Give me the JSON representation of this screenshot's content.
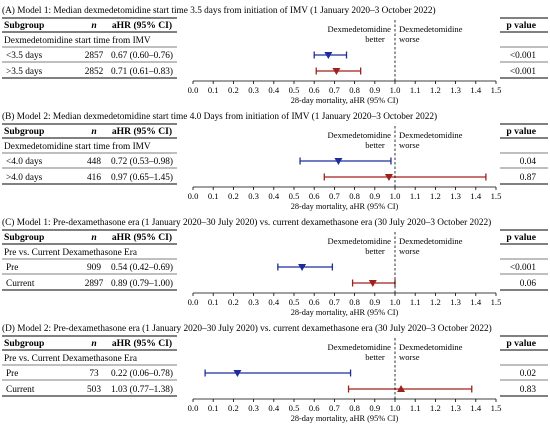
{
  "chart_data": [
    {
      "type": "forest",
      "title": "(A) Model 1: Median dexmedetomidine start time 3.5 days from initiation of IMV (1 January 2020–3 October 2022)",
      "columns": {
        "subgroup": "Subgroup",
        "n": "n",
        "ahr": "aHR (95% CI)",
        "p": "p value"
      },
      "group_label": "Dexmedetomidine start time from IMV",
      "rows": [
        {
          "label": "<3.5 days",
          "n": "2857",
          "ahr_text": "0.67 (0.60–0.76)",
          "p": "<0.001",
          "est": 0.67,
          "lo": 0.6,
          "hi": 0.76,
          "color": "#1f2d9c",
          "marker": "down"
        },
        {
          "label": ">3.5 days",
          "n": "2852",
          "ahr_text": "0.71 (0.61–0.83)",
          "p": "<0.001",
          "est": 0.71,
          "lo": 0.61,
          "hi": 0.83,
          "color": "#a0201c",
          "marker": "down"
        }
      ],
      "better_label": [
        "Dexmedetomidine",
        "better"
      ],
      "worse_label": [
        "Dexmedetomidine",
        "worse"
      ],
      "xlabel": "28-day mortality, aHR (95% CI)",
      "xlim": [
        0.0,
        1.5
      ],
      "xticks": [
        "0.0",
        "0.1",
        "0.2",
        "0.3",
        "0.4",
        "0.5",
        "0.6",
        "0.7",
        "0.8",
        "0.9",
        "1.0",
        "1.1",
        "1.2",
        "1.3",
        "1.4",
        "1.5"
      ],
      "reference_line": 1.0
    },
    {
      "type": "forest",
      "title": "(B) Model 2: Median dexmedetomidine start time 4.0 Days from initiation of IMV (1 January 2020–3 October 2022)",
      "columns": {
        "subgroup": "Subgroup",
        "n": "n",
        "ahr": "aHR (95% CI)",
        "p": "p value"
      },
      "group_label": "Dexmedetomidine start time from IMV",
      "rows": [
        {
          "label": "<4.0 days",
          "n": "448",
          "ahr_text": "0.72 (0.53–0.98)",
          "p": "0.04",
          "est": 0.72,
          "lo": 0.53,
          "hi": 0.98,
          "color": "#1f2d9c",
          "marker": "down"
        },
        {
          "label": ">4.0 days",
          "n": "416",
          "ahr_text": "0.97 (0.65–1.45)",
          "p": "0.87",
          "est": 0.97,
          "lo": 0.65,
          "hi": 1.45,
          "color": "#a0201c",
          "marker": "down"
        }
      ],
      "better_label": [
        "Dexmedetomidine",
        "better"
      ],
      "worse_label": [
        "Dexmedetomidine",
        "worse"
      ],
      "xlabel": "28-day mortality, aHR (95% CI)",
      "xlim": [
        0.0,
        1.5
      ],
      "xticks": [
        "0.0",
        "0.1",
        "0.2",
        "0.3",
        "0.4",
        "0.5",
        "0.6",
        "0.7",
        "0.8",
        "0.9",
        "1.0",
        "1.1",
        "1.2",
        "1.3",
        "1.4",
        "1.5"
      ],
      "reference_line": 1.0
    },
    {
      "type": "forest",
      "title": "(C) Model 1: Pre-dexamethasone era (1 January 2020–30 July 2020) vs. current dexamethasone era (30 July 2020–3 October 2022)",
      "columns": {
        "subgroup": "Subgroup",
        "n": "n",
        "ahr": "aHR (95% CI)",
        "p": "p value"
      },
      "group_label": "Pre vs. Current Dexamethasone Era",
      "rows": [
        {
          "label": "Pre",
          "n": "909",
          "ahr_text": "0.54 (0.42–0.69)",
          "p": "<0.001",
          "est": 0.54,
          "lo": 0.42,
          "hi": 0.69,
          "color": "#1f2d9c",
          "marker": "down"
        },
        {
          "label": "Current",
          "n": "2897",
          "ahr_text": "0.89 (0.79–1.00)",
          "p": "0.06",
          "est": 0.89,
          "lo": 0.79,
          "hi": 1.0,
          "color": "#a0201c",
          "marker": "down"
        }
      ],
      "better_label": [
        "Dexmedetomidine",
        "better"
      ],
      "worse_label": [
        "Dexmedetomidine",
        "worse"
      ],
      "xlabel": "28-day mortality, aHR (95% CI)",
      "xlim": [
        0.0,
        1.5
      ],
      "xticks": [
        "0.0",
        "0.1",
        "0.2",
        "0.3",
        "0.4",
        "0.5",
        "0.6",
        "0.7",
        "0.8",
        "0.9",
        "1.0",
        "1.1",
        "1.2",
        "1.3",
        "1.4",
        "1.5"
      ],
      "reference_line": 1.0
    },
    {
      "type": "forest",
      "title": "(D) Model 2: Pre-dexamethasone era (1 January 2020–30 July 2020) vs. current dexamethasone era (30 July 2020–3 October 2022)",
      "columns": {
        "subgroup": "Subgroup",
        "n": "n",
        "ahr": "aHR (95% CI)",
        "p": "p value"
      },
      "group_label": "Pre vs. Current Dexamethasone Era",
      "rows": [
        {
          "label": "Pre",
          "n": "73",
          "ahr_text": "0.22 (0.06–0.78)",
          "p": "0.02",
          "est": 0.22,
          "lo": 0.06,
          "hi": 0.78,
          "color": "#1f2d9c",
          "marker": "down"
        },
        {
          "label": "Current",
          "n": "503",
          "ahr_text": "1.03 (0.77–1.38)",
          "p": "0.83",
          "est": 1.03,
          "lo": 0.77,
          "hi": 1.38,
          "color": "#a0201c",
          "marker": "up"
        }
      ],
      "better_label": [
        "Dexmedetomidine",
        "better"
      ],
      "worse_label": [
        "Dexmedetomidine",
        "worse"
      ],
      "xlabel": "28-day mortality, aHR (95% CI)",
      "xlim": [
        0.0,
        1.5
      ],
      "xticks": [
        "0.0",
        "0.1",
        "0.2",
        "0.3",
        "0.4",
        "0.5",
        "0.6",
        "0.7",
        "0.8",
        "0.9",
        "1.0",
        "1.1",
        "1.2",
        "1.3",
        "1.4",
        "1.5"
      ],
      "reference_line": 1.0
    }
  ]
}
